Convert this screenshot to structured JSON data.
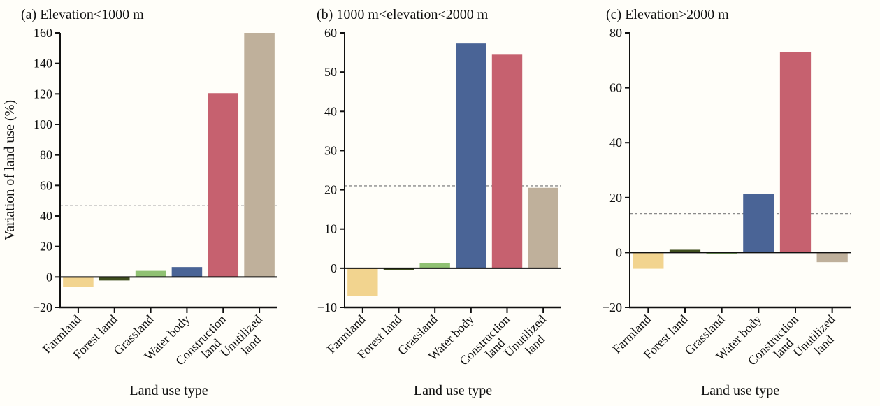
{
  "figure": {
    "background": "#fffef9",
    "axis_color": "#111111",
    "dashed_line_color": "#8a8a8a",
    "category_colors": {
      "farmland": "#F2D48F",
      "forest_land": "#3F4E1E",
      "grassland": "#90C173",
      "water_body": "#4A6496",
      "construction_land": "#C6616F",
      "unutilized_land": "#BFB09B"
    }
  },
  "chart_data": [
    {
      "type": "bar",
      "title": "(a) Elevation<1000 m",
      "xlabel": "Land use type",
      "ylabel": "Variation of land use (%)",
      "categories": [
        "Farmland",
        "Forest land",
        "Grassland",
        "Water body",
        "Construction\nland",
        "Unutilized\nland"
      ],
      "values": [
        -6.4,
        -2.3,
        4.0,
        6.5,
        120.5,
        160.0
      ],
      "colors": [
        "#F2D48F",
        "#3F4E1E",
        "#90C173",
        "#4A6496",
        "#C6616F",
        "#BFB09B"
      ],
      "ylim": [
        -20,
        160
      ],
      "yticks": [
        -20,
        0,
        20,
        40,
        60,
        80,
        100,
        120,
        140,
        160
      ],
      "mean_dashed_line": 47.0,
      "grid": false,
      "legend": null
    },
    {
      "type": "bar",
      "title": "(b) 1000 m<elevation<2000 m",
      "xlabel": "Land use type",
      "ylabel": "",
      "categories": [
        "Farmland",
        "Forest land",
        "Grassland",
        "Water body",
        "Construction\nland",
        "Unutilized\nland"
      ],
      "values": [
        -7.0,
        -0.4,
        1.4,
        57.3,
        54.6,
        20.5
      ],
      "colors": [
        "#F2D48F",
        "#3F4E1E",
        "#90C173",
        "#4A6496",
        "#C6616F",
        "#BFB09B"
      ],
      "ylim": [
        -10,
        60
      ],
      "yticks": [
        -10,
        0,
        10,
        20,
        30,
        40,
        50,
        60
      ],
      "mean_dashed_line": 21.0,
      "grid": false,
      "legend": null
    },
    {
      "type": "bar",
      "title": "(c) Elevation>2000 m",
      "xlabel": "Land use type",
      "ylabel": "",
      "categories": [
        "Farmland",
        "Forest land",
        "Grassland",
        "Water body",
        "Construction\nland",
        "Unutilized\nland"
      ],
      "values": [
        -5.9,
        1.0,
        -0.5,
        21.3,
        73.0,
        -3.5
      ],
      "colors": [
        "#F2D48F",
        "#3F4E1E",
        "#90C173",
        "#4A6496",
        "#C6616F",
        "#BFB09B"
      ],
      "ylim": [
        -20,
        80
      ],
      "yticks": [
        -20,
        0,
        20,
        40,
        60,
        80
      ],
      "mean_dashed_line": 14.2,
      "grid": false,
      "legend": null
    }
  ]
}
